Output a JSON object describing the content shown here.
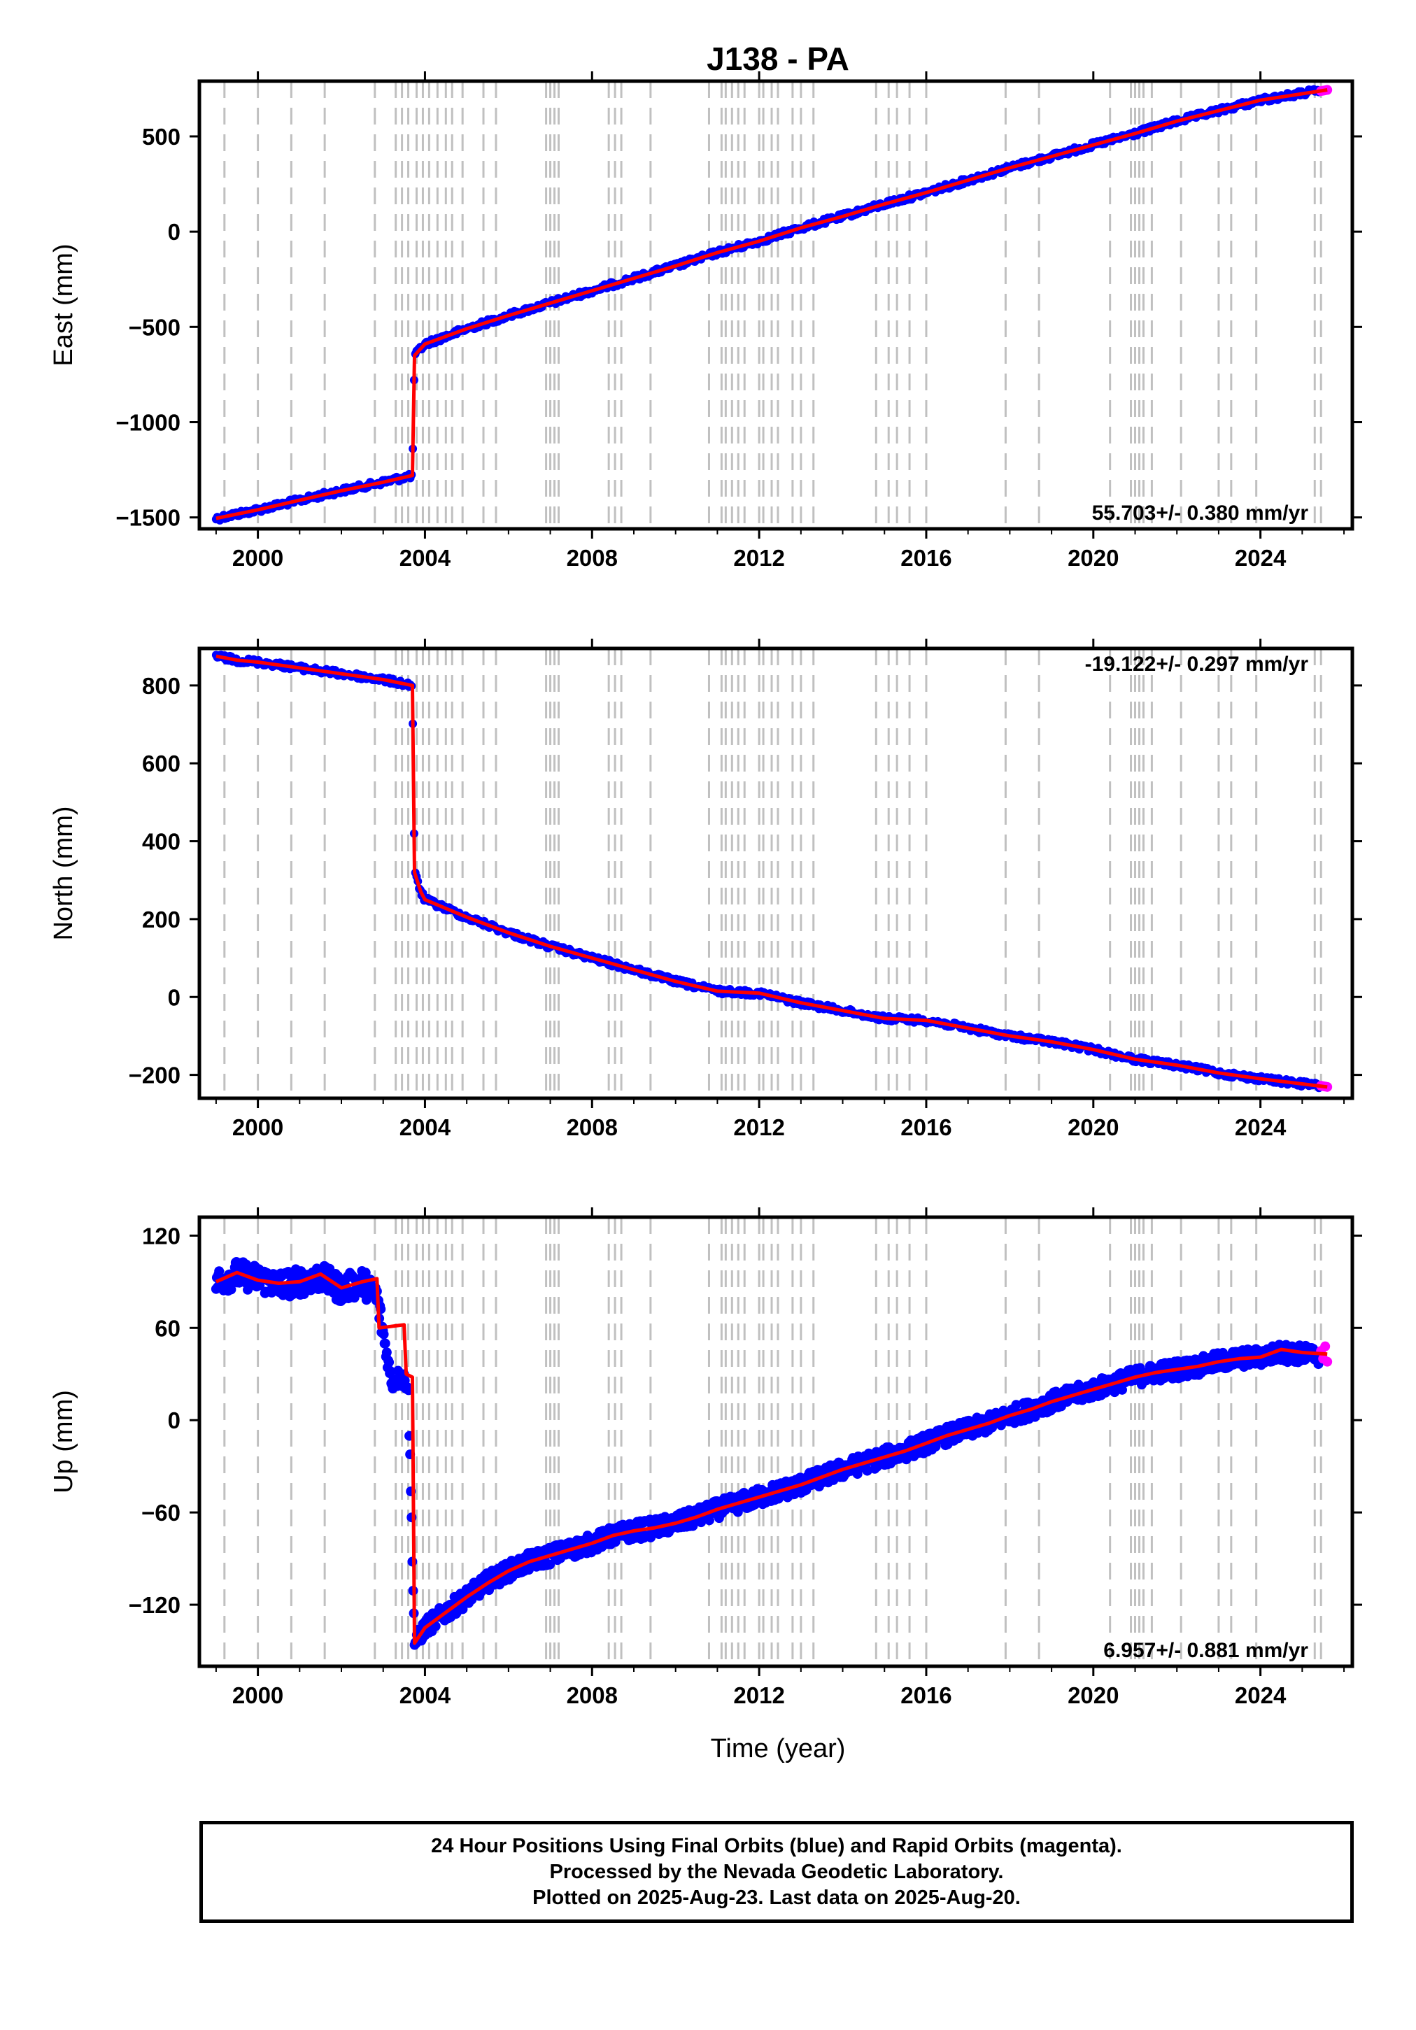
{
  "page_title": "J138 - PA",
  "xlabel": "Time (year)",
  "colors": {
    "final": "#0000ff",
    "rapid": "#ff00ff",
    "model": "#ff0000",
    "grid": "#c0c0c0"
  },
  "footer": {
    "line1": "24 Hour Positions Using Final Orbits (blue) and Rapid Orbits (magenta).",
    "line2": "Processed by the Nevada Geodetic Laboratory.",
    "line3": "Plotted on 2025-Aug-23. Last data on 2025-Aug-20."
  },
  "chart_data": [
    {
      "type": "scatter",
      "title": "J138 - PA",
      "xlabel": "",
      "ylabel": "East (mm)",
      "xlim": [
        1998.6,
        2026.2
      ],
      "ylim": [
        -1560,
        790
      ],
      "xticks": [
        2000,
        2004,
        2008,
        2012,
        2016,
        2020,
        2024
      ],
      "yticks": [
        -1500,
        -1000,
        -500,
        0,
        500
      ],
      "ytick_labels": [
        "−1500",
        "−1000",
        "−500",
        "0",
        "500"
      ],
      "rate_label": "55.703+/- 0.380 mm/yr",
      "rate_position": "bottom-right",
      "series": [
        {
          "role": "final",
          "x": [
            1999.0,
            2000.0,
            2001.0,
            2002.0,
            2003.0,
            2003.7,
            2003.75,
            2004.0,
            2005.0,
            2006.0,
            2007.0,
            2008.0,
            2009.0,
            2010.0,
            2011.0,
            2012.0,
            2013.0,
            2014.0,
            2015.0,
            2016.0,
            2017.0,
            2018.0,
            2019.0,
            2020.0,
            2021.0,
            2022.0,
            2023.0,
            2024.0,
            2025.4
          ],
          "y": [
            -1505,
            -1460,
            -1410,
            -1360,
            -1315,
            -1280,
            -650,
            -590,
            -510,
            -440,
            -375,
            -310,
            -245,
            -180,
            -110,
            -50,
            20,
            80,
            145,
            205,
            270,
            335,
            395,
            455,
            515,
            580,
            635,
            690,
            740
          ]
        },
        {
          "role": "rapid",
          "x": [
            2025.45,
            2025.5,
            2025.55,
            2025.6
          ],
          "y": [
            738,
            740,
            742,
            744
          ]
        },
        {
          "role": "model",
          "x": [
            1999.0,
            2000.0,
            2001.0,
            2002.0,
            2003.0,
            2003.7,
            2003.75,
            2004.0,
            2005.0,
            2006.0,
            2007.0,
            2008.0,
            2009.0,
            2010.0,
            2011.0,
            2012.0,
            2013.0,
            2014.0,
            2015.0,
            2016.0,
            2017.0,
            2018.0,
            2019.0,
            2020.0,
            2021.0,
            2022.0,
            2023.0,
            2024.0,
            2025.6
          ],
          "y": [
            -1505,
            -1460,
            -1410,
            -1360,
            -1315,
            -1280,
            -650,
            -590,
            -510,
            -440,
            -375,
            -310,
            -245,
            -180,
            -110,
            -50,
            20,
            80,
            145,
            205,
            270,
            335,
            395,
            455,
            515,
            580,
            635,
            690,
            744
          ]
        }
      ]
    },
    {
      "type": "scatter",
      "title": "",
      "xlabel": "",
      "ylabel": "North (mm)",
      "xlim": [
        1998.6,
        2026.2
      ],
      "ylim": [
        -260,
        895
      ],
      "xticks": [
        2000,
        2004,
        2008,
        2012,
        2016,
        2020,
        2024
      ],
      "yticks": [
        -200,
        0,
        200,
        400,
        600,
        800
      ],
      "ytick_labels": [
        "−200",
        "0",
        "200",
        "400",
        "600",
        "800"
      ],
      "rate_label": "-19.122+/- 0.297 mm/yr",
      "rate_position": "top-right",
      "series": [
        {
          "role": "final",
          "x": [
            1999.0,
            1999.5,
            2000.0,
            2001.0,
            2002.0,
            2003.0,
            2003.7,
            2003.75,
            2003.9,
            2004.0,
            2005.0,
            2006.0,
            2007.0,
            2008.0,
            2009.0,
            2010.0,
            2011.0,
            2012.0,
            2013.0,
            2014.0,
            2015.0,
            2016.0,
            2017.0,
            2018.0,
            2019.0,
            2020.0,
            2021.0,
            2022.0,
            2023.0,
            2024.0,
            2025.4
          ],
          "y": [
            875,
            865,
            860,
            845,
            830,
            815,
            800,
            320,
            270,
            250,
            205,
            165,
            130,
            100,
            70,
            40,
            15,
            10,
            -15,
            -35,
            -55,
            -60,
            -80,
            -100,
            -115,
            -135,
            -160,
            -175,
            -195,
            -210,
            -228
          ]
        },
        {
          "role": "rapid",
          "x": [
            2025.45,
            2025.5,
            2025.55,
            2025.6
          ],
          "y": [
            -228,
            -229,
            -230,
            -231
          ]
        },
        {
          "role": "model",
          "x": [
            1999.0,
            1999.5,
            2000.0,
            2001.0,
            2002.0,
            2003.0,
            2003.7,
            2003.75,
            2003.9,
            2004.0,
            2005.0,
            2006.0,
            2007.0,
            2008.0,
            2009.0,
            2010.0,
            2011.0,
            2012.0,
            2013.0,
            2014.0,
            2015.0,
            2016.0,
            2017.0,
            2018.0,
            2019.0,
            2020.0,
            2021.0,
            2022.0,
            2023.0,
            2024.0,
            2025.6
          ],
          "y": [
            875,
            865,
            860,
            845,
            830,
            815,
            800,
            320,
            270,
            250,
            205,
            165,
            130,
            100,
            70,
            40,
            15,
            10,
            -15,
            -35,
            -55,
            -60,
            -80,
            -100,
            -115,
            -135,
            -160,
            -175,
            -195,
            -210,
            -231
          ]
        }
      ]
    },
    {
      "type": "scatter",
      "title": "",
      "xlabel": "Time (year)",
      "ylabel": "Up (mm)",
      "xlim": [
        1998.6,
        2026.2
      ],
      "ylim": [
        -160,
        132
      ],
      "xticks": [
        2000,
        2004,
        2008,
        2012,
        2016,
        2020,
        2024
      ],
      "yticks": [
        -120,
        -60,
        0,
        60,
        120
      ],
      "ytick_labels": [
        "−120",
        "−60",
        "0",
        "60",
        "120"
      ],
      "rate_label": "6.957+/- 0.881 mm/yr",
      "rate_position": "bottom-right",
      "series": [
        {
          "role": "final",
          "x": [
            1999.0,
            1999.5,
            2000.0,
            2000.5,
            2001.0,
            2001.5,
            2002.0,
            2002.5,
            2002.85,
            2003.2,
            2003.4,
            2003.6,
            2003.75,
            2004.0,
            2004.5,
            2005.0,
            2005.5,
            2006.0,
            2006.5,
            2007.0,
            2007.5,
            2008.0,
            2008.5,
            2009.0,
            2009.5,
            2010.0,
            2010.5,
            2011.0,
            2011.5,
            2012.0,
            2012.5,
            2013.0,
            2013.5,
            2014.0,
            2014.5,
            2015.0,
            2015.5,
            2016.0,
            2016.5,
            2017.0,
            2017.5,
            2018.0,
            2018.5,
            2019.0,
            2019.5,
            2020.0,
            2020.5,
            2021.0,
            2021.5,
            2022.0,
            2022.5,
            2023.0,
            2023.5,
            2024.0,
            2024.5,
            2025.0,
            2025.4
          ],
          "y": [
            90,
            95,
            92,
            88,
            90,
            93,
            85,
            90,
            80,
            25,
            28,
            24,
            -145,
            -135,
            -125,
            -115,
            -105,
            -98,
            -92,
            -88,
            -84,
            -80,
            -75,
            -72,
            -70,
            -67,
            -63,
            -58,
            -54,
            -50,
            -46,
            -42,
            -37,
            -32,
            -28,
            -24,
            -20,
            -15,
            -10,
            -6,
            -2,
            3,
            7,
            12,
            16,
            20,
            24,
            28,
            31,
            33,
            35,
            38,
            40,
            41,
            44,
            43,
            42
          ]
        },
        {
          "role": "rapid",
          "x": [
            2025.45,
            2025.5,
            2025.55,
            2025.6
          ],
          "y": [
            45,
            40,
            48,
            38
          ]
        },
        {
          "role": "model",
          "x": [
            1999.0,
            1999.5,
            2000.0,
            2000.5,
            2001.0,
            2001.5,
            2002.0,
            2002.5,
            2002.85,
            2002.9,
            2003.5,
            2003.55,
            2003.7,
            2003.75,
            2004.0,
            2004.5,
            2005.0,
            2005.5,
            2006.0,
            2006.5,
            2007.0,
            2007.5,
            2008.0,
            2008.5,
            2009.0,
            2009.5,
            2010.0,
            2010.5,
            2011.0,
            2011.5,
            2012.0,
            2012.5,
            2013.0,
            2013.5,
            2014.0,
            2014.5,
            2015.0,
            2015.5,
            2016.0,
            2016.5,
            2017.0,
            2017.5,
            2018.0,
            2018.5,
            2019.0,
            2019.5,
            2020.0,
            2020.5,
            2021.0,
            2021.5,
            2022.0,
            2022.5,
            2023.0,
            2023.5,
            2024.0,
            2024.5,
            2025.0,
            2025.6
          ],
          "y": [
            90,
            96,
            91,
            89,
            90,
            95,
            86,
            90,
            92,
            60,
            62,
            30,
            28,
            -145,
            -135,
            -125,
            -115,
            -106,
            -98,
            -92,
            -88,
            -84,
            -80,
            -75,
            -72,
            -70,
            -67,
            -63,
            -58,
            -54,
            -50,
            -46,
            -42,
            -37,
            -32,
            -28,
            -24,
            -20,
            -15,
            -10,
            -6,
            -2,
            3,
            7,
            12,
            16,
            20,
            24,
            28,
            31,
            33,
            35,
            38,
            40,
            41,
            46,
            44,
            43
          ]
        }
      ]
    }
  ],
  "event_lines": [
    1999.2,
    2000.0,
    2000.8,
    2001.6,
    2002.8,
    2003.3,
    2003.45,
    2003.6,
    2003.8,
    2003.95,
    2004.1,
    2004.3,
    2004.5,
    2004.65,
    2004.9,
    2005.4,
    2005.7,
    2006.9,
    2007.0,
    2007.1,
    2007.2,
    2008.4,
    2008.55,
    2008.7,
    2009.4,
    2010.8,
    2011.1,
    2011.2,
    2011.35,
    2011.5,
    2011.65,
    2012.0,
    2012.1,
    2012.3,
    2012.45,
    2012.8,
    2013.0,
    2013.3,
    2014.8,
    2015.1,
    2015.3,
    2015.6,
    2016.0,
    2017.9,
    2018.7,
    2020.4,
    2020.9,
    2021.0,
    2021.1,
    2021.2,
    2021.4,
    2022.1,
    2023.0,
    2023.3,
    2023.9,
    2025.3,
    2025.45
  ]
}
